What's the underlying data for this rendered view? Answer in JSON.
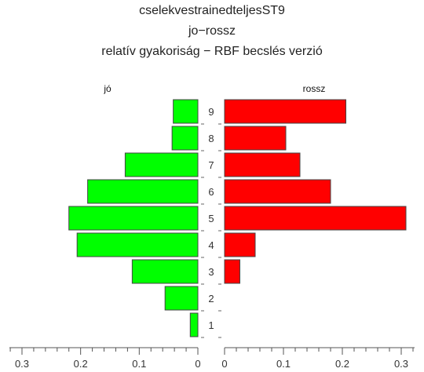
{
  "chart_data": {
    "type": "bar",
    "orientation": "horizontal-pyramid",
    "title": "cselekvestrainedteljesST9",
    "subtitle": "jo−rossz",
    "subtitle2": "relatív gyakoriság − RBF becslés verzió",
    "categories": [
      "1",
      "2",
      "3",
      "4",
      "5",
      "6",
      "7",
      "8",
      "9"
    ],
    "series": [
      {
        "name": "jó",
        "side": "left",
        "color": "#00ff00",
        "values": [
          0.013,
          0.056,
          0.112,
          0.206,
          0.22,
          0.188,
          0.124,
          0.044,
          0.042
        ]
      },
      {
        "name": "rossz",
        "side": "right",
        "color": "#ff0000",
        "values": [
          0.0,
          0.0,
          0.026,
          0.052,
          0.308,
          0.18,
          0.128,
          0.104,
          0.206
        ]
      }
    ],
    "xlim_left": [
      0,
      0.32
    ],
    "xlim_right": [
      0,
      0.32
    ],
    "ticks_left": [
      "0.3",
      "0.2",
      "0.1",
      "0"
    ],
    "ticks_right": [
      "0",
      "0.1",
      "0.2",
      "0.3"
    ],
    "tick_values": [
      0,
      0.1,
      0.2,
      0.3
    ],
    "grid": false
  }
}
